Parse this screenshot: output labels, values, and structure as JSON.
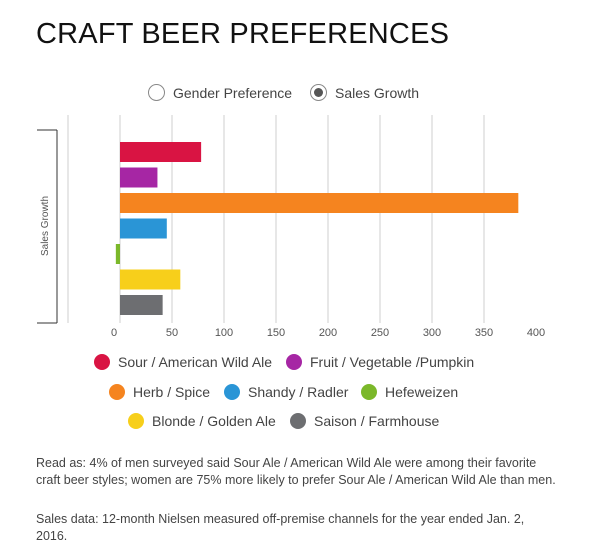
{
  "title": "CRAFT BEER PREFERENCES",
  "toggles": [
    {
      "label": "Gender Preference",
      "selected": false
    },
    {
      "label": "Sales Growth",
      "selected": true
    }
  ],
  "chart_data": {
    "type": "bar",
    "orientation": "horizontal",
    "ylabel": "Sales Growth",
    "xlim": [
      0,
      400
    ],
    "xticks": [
      "0",
      "50",
      "100",
      "150",
      "200",
      "250",
      "300",
      "350",
      "400"
    ],
    "grid": true,
    "categories": [
      "Sour / American Wild Ale",
      "Fruit / Vegetable /Pumpkin",
      "Herb / Spice",
      "Shandy / Radler",
      "Hefeweizen",
      "Blonde / Golden Ale",
      "Saison / Farmhouse"
    ],
    "values": [
      78,
      36,
      383,
      45,
      -4,
      58,
      41
    ],
    "colors": [
      "#d91443",
      "#a626a4",
      "#f5841f",
      "#2a95d6",
      "#7bb82a",
      "#f7cf1b",
      "#6d6e71"
    ],
    "legend_position": "bottom"
  },
  "legend": [
    {
      "label": "Sour / American Wild Ale",
      "color": "#d91443"
    },
    {
      "label": "Fruit / Vegetable /Pumpkin",
      "color": "#a626a4"
    },
    {
      "label": "Herb / Spice",
      "color": "#f5841f"
    },
    {
      "label": "Shandy / Radler",
      "color": "#2a95d6"
    },
    {
      "label": "Hefeweizen",
      "color": "#7bb82a"
    },
    {
      "label": "Blonde / Golden Ale",
      "color": "#f7cf1b"
    },
    {
      "label": "Saison / Farmhouse",
      "color": "#6d6e71"
    }
  ],
  "notes": {
    "read_as": "Read as: 4% of men surveyed said Sour Ale / American Wild Ale were among their favorite craft beer styles; women are 75% more likely to prefer Sour Ale / American Wild Ale than men.",
    "sales": "Sales data: 12-month Nielsen measured off-premise channels for the year ended Jan. 2, 2016."
  }
}
